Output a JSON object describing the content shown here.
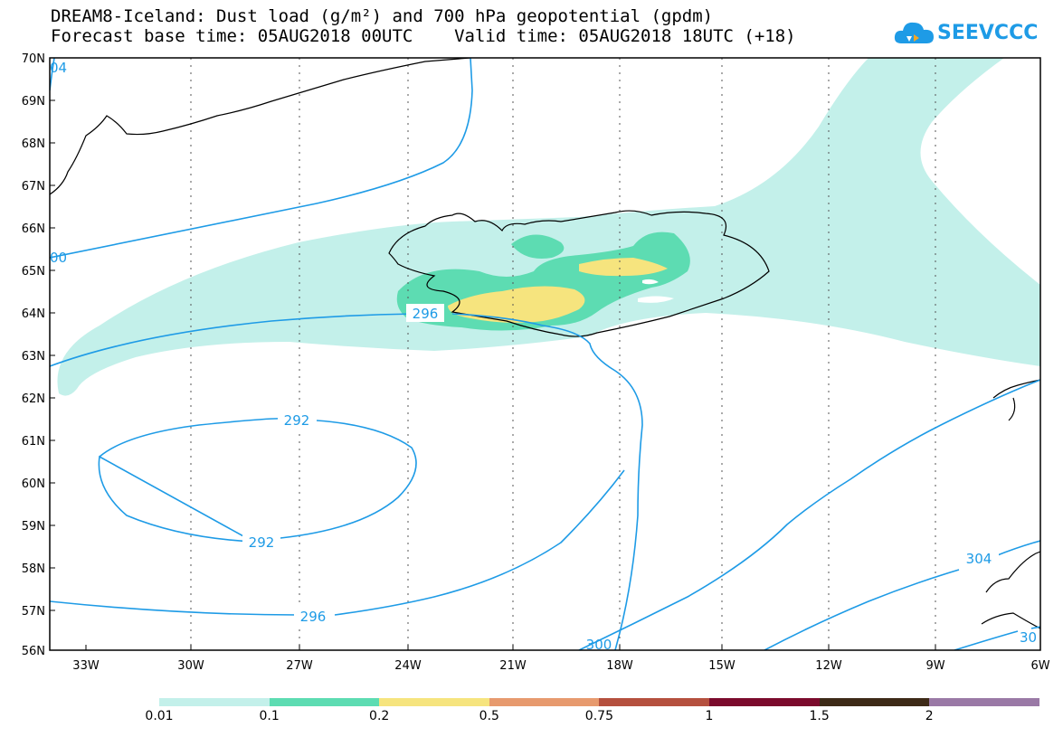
{
  "title_line1": "DREAM8-Iceland: Dust load (g/m²) and 700 hPa geopotential (gpdm)",
  "title_line2": "Forecast base time: 05AUG2018 00UTC    Valid time: 05AUG2018 18UTC (+18)",
  "logo": {
    "text": "SEEVCCC",
    "icon": "cloud-logo-icon",
    "color": "#1e9be6"
  },
  "lat_labels": [
    "70N",
    "69N",
    "68N",
    "67N",
    "66N",
    "65N",
    "64N",
    "63N",
    "62N",
    "61N",
    "60N",
    "59N",
    "58N",
    "57N",
    "56N"
  ],
  "lon_labels": [
    "33W",
    "30W",
    "27W",
    "24W",
    "21W",
    "18W",
    "15W",
    "12W",
    "9W",
    "6W"
  ],
  "contour_labels": {
    "c292_top": "292",
    "c292_bottom": "292",
    "c296_west": "296",
    "c296_south": "296",
    "c300_south": "300",
    "c304_east": "304",
    "c300_west": "00",
    "c304_nw": "04",
    "c30x_se": "30"
  },
  "colorbar": {
    "labels": [
      "0.01",
      "0.1",
      "0.2",
      "0.5",
      "0.75",
      "1",
      "1.5",
      "2"
    ],
    "colors": [
      "#c3f0ea",
      "#5ddcb2",
      "#f6e47e",
      "#e79a6e",
      "#b5503e",
      "#7b0a2c",
      "#3d2a17",
      "#9a79a6"
    ]
  }
}
